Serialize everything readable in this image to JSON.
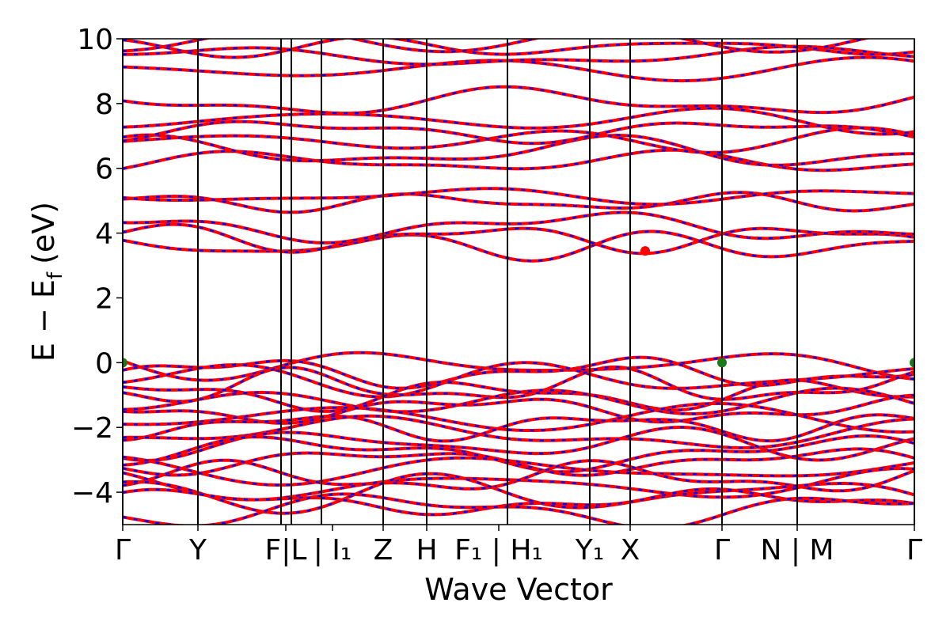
{
  "chart_data": {
    "type": "line",
    "title": "",
    "xlabel": "Wave Vector",
    "ylabel": "E − E",
    "ylabel_subscript": "f",
    "ylabel_unit": "(eV)",
    "ylim": [
      -5,
      10
    ],
    "yticks": [
      {
        "value": 10,
        "label": "10"
      },
      {
        "value": 8,
        "label": "8"
      },
      {
        "value": 6,
        "label": "6"
      },
      {
        "value": 4,
        "label": "4"
      },
      {
        "value": 2,
        "label": "2"
      },
      {
        "value": 0,
        "label": "0"
      },
      {
        "value": -2,
        "label": "−2"
      },
      {
        "value": -4,
        "label": "−4"
      }
    ],
    "xlim": [
      0,
      1
    ],
    "kpoint_lines": [
      0.0,
      0.095,
      0.2,
      0.213,
      0.251,
      0.329,
      0.384,
      0.486,
      0.59,
      0.641,
      0.757,
      0.852,
      1.0
    ],
    "xticks": [
      {
        "value": 0.0,
        "label": "Γ"
      },
      {
        "value": 0.095,
        "label": "Y"
      },
      {
        "value": 0.206,
        "label": "F|L"
      },
      {
        "value": 0.265,
        "label": "| I₁"
      },
      {
        "value": 0.329,
        "label": "Z"
      },
      {
        "value": 0.384,
        "label": "H"
      },
      {
        "value": 0.475,
        "label": "F₁ | H₁"
      },
      {
        "value": 0.59,
        "label": "Y₁"
      },
      {
        "value": 0.641,
        "label": "X"
      },
      {
        "value": 0.757,
        "label": "Γ"
      },
      {
        "value": 0.852,
        "label": "N | M"
      },
      {
        "value": 1.0,
        "label": "Γ"
      }
    ],
    "series": [
      {
        "color": "#ff0000",
        "style": "solid"
      },
      {
        "color": "#0000ff",
        "style": "dashed"
      }
    ],
    "markers": [
      {
        "x": 0.0,
        "y": 0.0,
        "color": "#1a7a1a"
      },
      {
        "x": 0.757,
        "y": 0.0,
        "color": "#1a7a1a"
      },
      {
        "x": 1.0,
        "y": 0.0,
        "color": "#1a7a1a"
      },
      {
        "x": 0.66,
        "y": 3.45,
        "color": "#ff0000"
      }
    ],
    "conduction_bands": [
      3.6,
      3.85,
      4.2,
      4.95,
      5.15,
      6.2,
      6.5,
      6.85,
      7.15,
      7.5,
      8.05,
      9.05,
      9.45,
      9.75,
      9.95
    ],
    "valence_bands": [
      -0.05,
      -0.3,
      -0.5,
      -0.75,
      -1.0,
      -1.2,
      -1.45,
      -1.7,
      -1.95,
      -2.2,
      -2.5,
      -2.8,
      -3.05,
      -3.3,
      -3.55,
      -3.8,
      -4.05,
      -4.3,
      -4.55
    ],
    "grid": false,
    "legend": "none"
  }
}
